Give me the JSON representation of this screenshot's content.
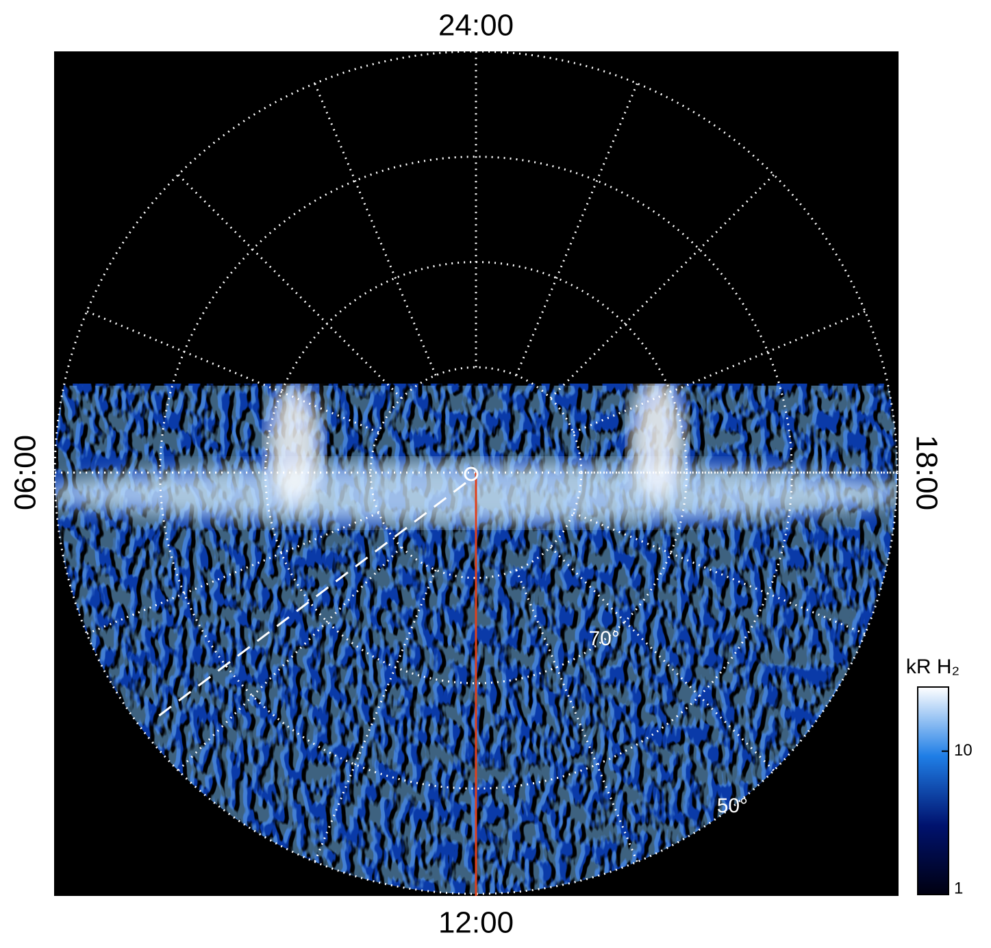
{
  "chart_data": {
    "type": "polar-image",
    "hour_labels": [
      "24:00",
      "06:00",
      "12:00",
      "18:00"
    ],
    "lat_grid": [
      80,
      70,
      60,
      50
    ],
    "lat_labels": [
      "70°",
      "50°"
    ],
    "rlim": [
      90,
      50
    ],
    "hour_grid_step": 1.5,
    "colorbar": {
      "label": "kR H₂",
      "log": true,
      "lim": [
        1,
        28
      ],
      "ticks": [
        1,
        10
      ],
      "colors": [
        "#000010",
        "#00126e",
        "#1f7ee6",
        "#ffffff"
      ]
    }
  }
}
